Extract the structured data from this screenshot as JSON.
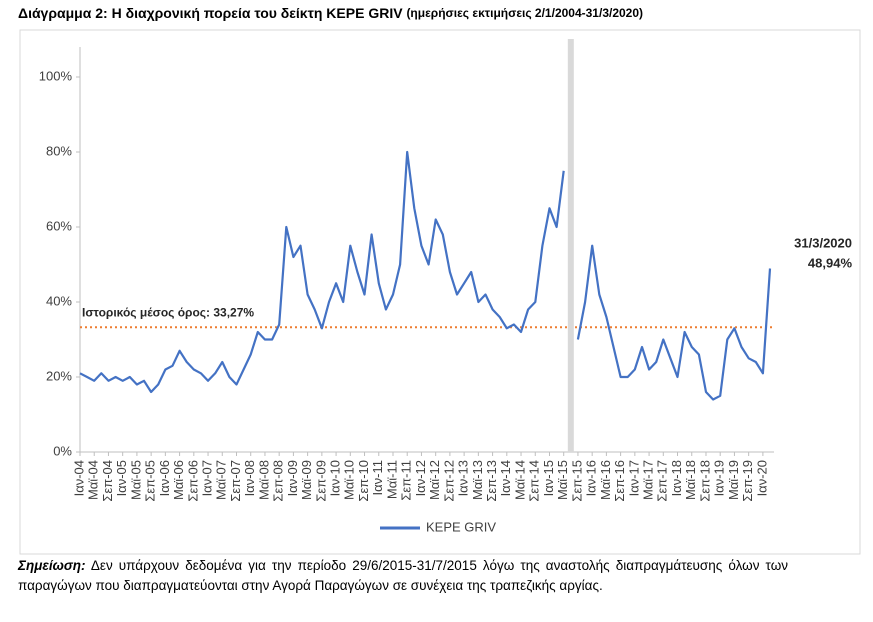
{
  "chart_data": {
    "type": "line",
    "title": "Διάγραμμα 2: Η διαχρονική πορεία του δείκτη ΚΕΡΕ GRIV",
    "subtitle": "(ημερήσιες εκτιμήσεις 2/1/2004-31/3/2020)",
    "categories": [
      "Ιαν-04",
      null,
      "Μαϊ-04",
      null,
      "Σεπ-04",
      null,
      "Ιαν-05",
      null,
      "Μαϊ-05",
      null,
      "Σεπ-05",
      null,
      "Ιαν-06",
      null,
      "Μαϊ-06",
      null,
      "Σεπ-06",
      null,
      "Ιαν-07",
      null,
      "Μαϊ-07",
      null,
      "Σεπ-07",
      null,
      "Ιαν-08",
      null,
      "Μαϊ-08",
      null,
      "Σεπ-08",
      null,
      "Ιαν-09",
      null,
      "Μαϊ-09",
      null,
      "Σεπ-09",
      null,
      "Ιαν-10",
      null,
      "Μαϊ-10",
      null,
      "Σεπ-10",
      null,
      "Ιαν-11",
      null,
      "Μαϊ-11",
      null,
      "Σεπ-11",
      null,
      "Ιαν-12",
      null,
      "Μαϊ-12",
      null,
      "Σεπ-12",
      null,
      "Ιαν-13",
      null,
      "Μαϊ-13",
      null,
      "Σεπ-13",
      null,
      "Ιαν-14",
      null,
      "Μαϊ-14",
      null,
      "Σεπ-14",
      null,
      "Ιαν-15",
      null,
      "Μαϊ-15",
      null,
      "Σεπ-15",
      null,
      "Ιαν-16",
      null,
      "Μαϊ-16",
      null,
      "Σεπ-16",
      null,
      "Ιαν-17",
      null,
      "Μαϊ-17",
      null,
      "Σεπ-17",
      null,
      "Ιαν-18",
      null,
      "Μαϊ-18",
      null,
      "Σεπ-18",
      null,
      "Ιαν-19",
      null,
      "Μαϊ-19",
      null,
      "Σεπ-19",
      null,
      "Ιαν-20",
      null
    ],
    "series": [
      {
        "name": "KEPE GRIV",
        "color": "#4472c4",
        "values": [
          21,
          20,
          19,
          21,
          19,
          20,
          19,
          20,
          18,
          19,
          16,
          18,
          22,
          23,
          27,
          24,
          22,
          21,
          19,
          21,
          24,
          20,
          18,
          22,
          26,
          32,
          30,
          30,
          34,
          60,
          52,
          55,
          42,
          38,
          33,
          40,
          45,
          40,
          55,
          48,
          42,
          58,
          45,
          38,
          42,
          50,
          80,
          65,
          55,
          50,
          62,
          58,
          48,
          42,
          45,
          48,
          40,
          42,
          38,
          36,
          33,
          34,
          32,
          38,
          40,
          55,
          65,
          60,
          75,
          null,
          30,
          40,
          55,
          42,
          36,
          28,
          20,
          20,
          22,
          28,
          22,
          24,
          30,
          25,
          20,
          32,
          28,
          26,
          16,
          14,
          15,
          30,
          33,
          28,
          25,
          24,
          21,
          48.94
        ]
      }
    ],
    "ylim": [
      0,
      108
    ],
    "yticks": [
      {
        "value": 0,
        "label": "0%"
      },
      {
        "value": 20,
        "label": "20%"
      },
      {
        "value": 40,
        "label": "40%"
      },
      {
        "value": 60,
        "label": "60%"
      },
      {
        "value": 80,
        "label": "80%"
      },
      {
        "value": 100,
        "label": "100%"
      }
    ],
    "mean": {
      "value": 33.27,
      "label": "Ιστορικός μέσος όρος: 33,27%",
      "color": "#ed7d31"
    },
    "annotations": [
      "31/3/2020",
      "48,94%"
    ],
    "note_label": "Σημείωση:",
    "note": "Δεν υπάρχουν δεδομένα για την περίοδο 29/6/2015-31/7/2015 λόγω της αναστολής διαπραγμάτευσης όλων των παραγώγων που διαπραγματεύονται στην Αγορά Παραγώγων σε συνέχεια της τραπεζικής αργίας."
  }
}
